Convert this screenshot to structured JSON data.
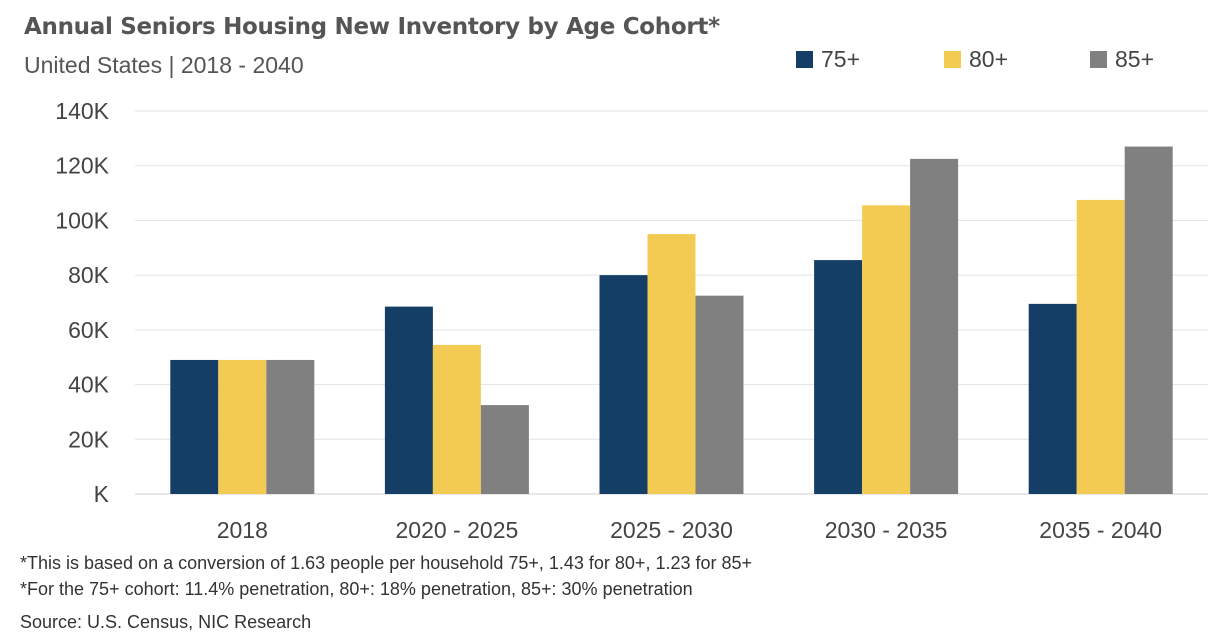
{
  "title": "Annual Seniors Housing New Inventory by Age Cohort*",
  "subtitle": "United States | 2018 - 2040",
  "footnotes": [
    "*This is based on a conversion of 1.63 people per household 75+, 1.43 for 80+, 1.23 for 85+",
    "*For the 75+ cohort: 11.4% penetration, 80+: 18% penetration, 85+: 30% penetration"
  ],
  "source": "Source: U.S. Census, NIC Research",
  "chart_data": {
    "type": "bar",
    "title": "Annual Seniors Housing New Inventory by Age Cohort*",
    "subtitle": "United States | 2018 - 2040",
    "categories": [
      "2018",
      "2020 - 2025",
      "2025 - 2030",
      "2030 - 2035",
      "2035 - 2040"
    ],
    "series": [
      {
        "name": "75+",
        "color": "#153e67",
        "values": [
          49000,
          68500,
          80000,
          85500,
          69500
        ]
      },
      {
        "name": "80+",
        "color": "#f4cb52",
        "values": [
          49000,
          54500,
          95000,
          105500,
          107500
        ]
      },
      {
        "name": "85+",
        "color": "#808080",
        "values": [
          49000,
          32500,
          72500,
          122500,
          127000
        ]
      }
    ],
    "ylim": [
      0,
      140000
    ],
    "yticks": [
      0,
      20000,
      40000,
      60000,
      80000,
      100000,
      120000,
      140000
    ],
    "ytick_labels": [
      "K",
      "20K",
      "40K",
      "60K",
      "80K",
      "100K",
      "120K",
      "140K"
    ],
    "xlabel": "",
    "ylabel": "",
    "grid": true,
    "legend": "top-right"
  }
}
